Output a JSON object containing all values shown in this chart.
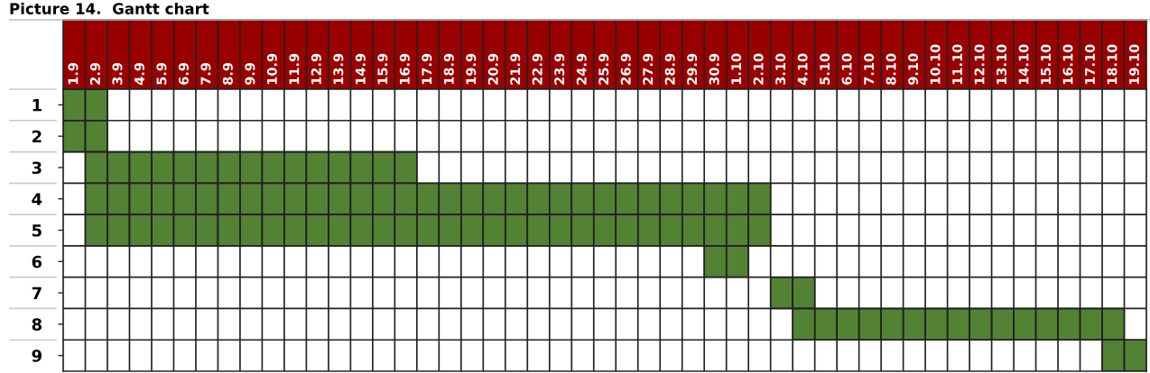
{
  "chart_data": {
    "type": "bar",
    "title": "Picture 14.  Gantt chart",
    "categories": [
      "1.9",
      "2.9",
      "3.9",
      "4.9",
      "5.9",
      "6.9",
      "7.9",
      "8.9",
      "9.9",
      "10.9",
      "11.9",
      "12.9",
      "13.9",
      "14.9",
      "15.9",
      "16.9",
      "17.9",
      "18.9",
      "19.9",
      "20.9",
      "21.9",
      "22.9",
      "23.9",
      "24.9",
      "25.9",
      "26.9",
      "27.9",
      "28.9",
      "29.9",
      "30.9",
      "1.10",
      "2.10",
      "3.10",
      "4.10",
      "5.10",
      "6.10",
      "7.10",
      "8.10",
      "9.10",
      "10.10",
      "11.10",
      "12.10",
      "13.10",
      "14.10",
      "15.10",
      "16.10",
      "17.10",
      "18.10",
      "19.10"
    ],
    "series": [
      {
        "color": "#548235",
        "values": [
          1,
          1,
          null,
          null,
          null,
          null,
          null,
          null,
          null,
          null,
          null,
          null,
          null,
          null,
          null,
          null,
          null,
          null,
          null,
          null,
          null,
          null,
          null,
          null,
          null,
          null,
          null,
          null,
          null,
          null,
          null,
          null,
          null,
          null,
          null,
          null,
          null,
          null,
          null,
          null,
          null,
          null,
          null,
          null,
          null,
          null,
          null,
          null,
          null
        ],
        "base": [
          0.5,
          0.5,
          null,
          null,
          null,
          null,
          null,
          null,
          null,
          null,
          null,
          null,
          null,
          null,
          null,
          null,
          null,
          null,
          null,
          null,
          null,
          null,
          null,
          null,
          null,
          null,
          null,
          null,
          null,
          null,
          null,
          null,
          null,
          null,
          null,
          null,
          null,
          null,
          null,
          null,
          null,
          null,
          null,
          null,
          null,
          null,
          null,
          null,
          null
        ]
      },
      {
        "color": "#548235",
        "values": [
          1,
          1,
          null,
          null,
          null,
          null,
          null,
          null,
          null,
          null,
          null,
          null,
          null,
          null,
          null,
          null,
          null,
          null,
          null,
          null,
          null,
          null,
          null,
          null,
          null,
          null,
          null,
          null,
          null,
          null,
          null,
          null,
          null,
          null,
          null,
          null,
          null,
          null,
          null,
          null,
          null,
          null,
          null,
          null,
          null,
          null,
          null,
          null,
          null
        ],
        "base": [
          1.5,
          1.5,
          null,
          null,
          null,
          null,
          null,
          null,
          null,
          null,
          null,
          null,
          null,
          null,
          null,
          null,
          null,
          null,
          null,
          null,
          null,
          null,
          null,
          null,
          null,
          null,
          null,
          null,
          null,
          null,
          null,
          null,
          null,
          null,
          null,
          null,
          null,
          null,
          null,
          null,
          null,
          null,
          null,
          null,
          null,
          null,
          null,
          null,
          null
        ]
      },
      {
        "color": "#548235",
        "values": [
          null,
          1,
          1,
          1,
          1,
          1,
          1,
          1,
          1,
          1,
          1,
          1,
          1,
          1,
          1,
          1,
          null,
          null,
          null,
          null,
          null,
          null,
          null,
          null,
          null,
          null,
          null,
          null,
          null,
          null,
          null,
          null,
          null,
          null,
          null,
          null,
          null,
          null,
          null,
          null,
          null,
          null,
          null,
          null,
          null,
          null,
          null,
          null,
          null
        ],
        "base": [
          null,
          2.5,
          2.5,
          2.5,
          2.5,
          2.5,
          2.5,
          2.5,
          2.5,
          2.5,
          2.5,
          2.5,
          2.5,
          2.5,
          2.5,
          2.5,
          null,
          null,
          null,
          null,
          null,
          null,
          null,
          null,
          null,
          null,
          null,
          null,
          null,
          null,
          null,
          null,
          null,
          null,
          null,
          null,
          null,
          null,
          null,
          null,
          null,
          null,
          null,
          null,
          null,
          null,
          null,
          null,
          null
        ]
      },
      {
        "color": "#548235",
        "values": [
          null,
          1,
          1,
          1,
          1,
          1,
          1,
          1,
          1,
          1,
          1,
          1,
          1,
          1,
          1,
          1,
          1,
          1,
          1,
          1,
          1,
          1,
          1,
          1,
          1,
          1,
          1,
          1,
          1,
          1,
          1,
          1,
          null,
          null,
          null,
          null,
          null,
          null,
          null,
          null,
          null,
          null,
          null,
          null,
          null,
          null,
          null,
          null,
          null
        ],
        "base": [
          null,
          3.5,
          3.5,
          3.5,
          3.5,
          3.5,
          3.5,
          3.5,
          3.5,
          3.5,
          3.5,
          3.5,
          3.5,
          3.5,
          3.5,
          3.5,
          3.5,
          3.5,
          3.5,
          3.5,
          3.5,
          3.5,
          3.5,
          3.5,
          3.5,
          3.5,
          3.5,
          3.5,
          3.5,
          3.5,
          3.5,
          3.5,
          null,
          null,
          null,
          null,
          null,
          null,
          null,
          null,
          null,
          null,
          null,
          null,
          null,
          null,
          null,
          null,
          null
        ]
      },
      {
        "color": "#548235",
        "values": [
          null,
          1,
          1,
          1,
          1,
          1,
          1,
          1,
          1,
          1,
          1,
          1,
          1,
          1,
          1,
          1,
          1,
          1,
          1,
          1,
          1,
          1,
          1,
          1,
          1,
          1,
          1,
          1,
          1,
          1,
          1,
          1,
          null,
          null,
          null,
          null,
          null,
          null,
          null,
          null,
          null,
          null,
          null,
          null,
          null,
          null,
          null,
          null,
          null
        ],
        "base": [
          null,
          4.5,
          4.5,
          4.5,
          4.5,
          4.5,
          4.5,
          4.5,
          4.5,
          4.5,
          4.5,
          4.5,
          4.5,
          4.5,
          4.5,
          4.5,
          4.5,
          4.5,
          4.5,
          4.5,
          4.5,
          4.5,
          4.5,
          4.5,
          4.5,
          4.5,
          4.5,
          4.5,
          4.5,
          4.5,
          4.5,
          4.5,
          null,
          null,
          null,
          null,
          null,
          null,
          null,
          null,
          null,
          null,
          null,
          null,
          null,
          null,
          null,
          null,
          null
        ]
      },
      {
        "color": "#548235",
        "values": [
          null,
          null,
          null,
          null,
          null,
          null,
          null,
          null,
          null,
          null,
          null,
          null,
          null,
          null,
          null,
          null,
          null,
          null,
          null,
          null,
          null,
          null,
          null,
          null,
          null,
          null,
          null,
          null,
          null,
          1,
          1,
          null,
          null,
          null,
          null,
          null,
          null,
          null,
          null,
          null,
          null,
          null,
          null,
          null,
          null,
          null,
          null,
          null,
          null
        ],
        "base": [
          null,
          null,
          null,
          null,
          null,
          null,
          null,
          null,
          null,
          null,
          null,
          null,
          null,
          null,
          null,
          null,
          null,
          null,
          null,
          null,
          null,
          null,
          null,
          null,
          null,
          null,
          null,
          null,
          null,
          5.5,
          5.5,
          null,
          null,
          null,
          null,
          null,
          null,
          null,
          null,
          null,
          null,
          null,
          null,
          null,
          null,
          null,
          null,
          null,
          null
        ]
      },
      {
        "color": "#548235",
        "values": [
          null,
          null,
          null,
          null,
          null,
          null,
          null,
          null,
          null,
          null,
          null,
          null,
          null,
          null,
          null,
          null,
          null,
          null,
          null,
          null,
          null,
          null,
          null,
          null,
          null,
          null,
          null,
          null,
          null,
          null,
          null,
          null,
          1,
          1,
          null,
          null,
          null,
          null,
          null,
          null,
          null,
          null,
          null,
          null,
          null,
          null,
          null,
          null,
          null
        ],
        "base": [
          null,
          null,
          null,
          null,
          null,
          null,
          null,
          null,
          null,
          null,
          null,
          null,
          null,
          null,
          null,
          null,
          null,
          null,
          null,
          null,
          null,
          null,
          null,
          null,
          null,
          null,
          null,
          null,
          null,
          null,
          null,
          null,
          6.5,
          6.5,
          null,
          null,
          null,
          null,
          null,
          null,
          null,
          null,
          null,
          null,
          null,
          null,
          null,
          null,
          null
        ]
      },
      {
        "color": "#548235",
        "values": [
          null,
          null,
          null,
          null,
          null,
          null,
          null,
          null,
          null,
          null,
          null,
          null,
          null,
          null,
          null,
          null,
          null,
          null,
          null,
          null,
          null,
          null,
          null,
          null,
          null,
          null,
          null,
          null,
          null,
          null,
          null,
          null,
          null,
          1,
          1,
          1,
          1,
          1,
          1,
          1,
          1,
          1,
          1,
          1,
          1,
          1,
          1,
          1,
          null
        ],
        "base": [
          null,
          null,
          null,
          null,
          null,
          null,
          null,
          null,
          null,
          null,
          null,
          null,
          null,
          null,
          null,
          null,
          null,
          null,
          null,
          null,
          null,
          null,
          null,
          null,
          null,
          null,
          null,
          null,
          null,
          null,
          null,
          null,
          null,
          7.5,
          7.5,
          7.5,
          7.5,
          7.5,
          7.5,
          7.5,
          7.5,
          7.5,
          7.5,
          7.5,
          7.5,
          7.5,
          7.5,
          7.5,
          null
        ]
      },
      {
        "color": "#548235",
        "values": [
          null,
          null,
          null,
          null,
          null,
          null,
          null,
          null,
          null,
          null,
          null,
          null,
          null,
          null,
          null,
          null,
          null,
          null,
          null,
          null,
          null,
          null,
          null,
          null,
          null,
          null,
          null,
          null,
          null,
          null,
          null,
          null,
          null,
          null,
          null,
          null,
          null,
          null,
          null,
          null,
          null,
          null,
          null,
          null,
          null,
          null,
          null,
          1,
          1
        ],
        "base": [
          null,
          null,
          null,
          null,
          null,
          null,
          null,
          null,
          null,
          null,
          null,
          null,
          null,
          null,
          null,
          null,
          null,
          null,
          null,
          null,
          null,
          null,
          null,
          null,
          null,
          null,
          null,
          null,
          null,
          null,
          null,
          null,
          null,
          null,
          null,
          null,
          null,
          null,
          null,
          null,
          null,
          null,
          null,
          null,
          null,
          null,
          null,
          8.5,
          8.5
        ]
      }
    ],
    "ylim": [
      9.5,
      0.5
    ],
    "yticks": [
      1,
      2,
      3,
      4,
      5,
      6,
      7,
      8,
      9
    ],
    "grid": true
  }
}
